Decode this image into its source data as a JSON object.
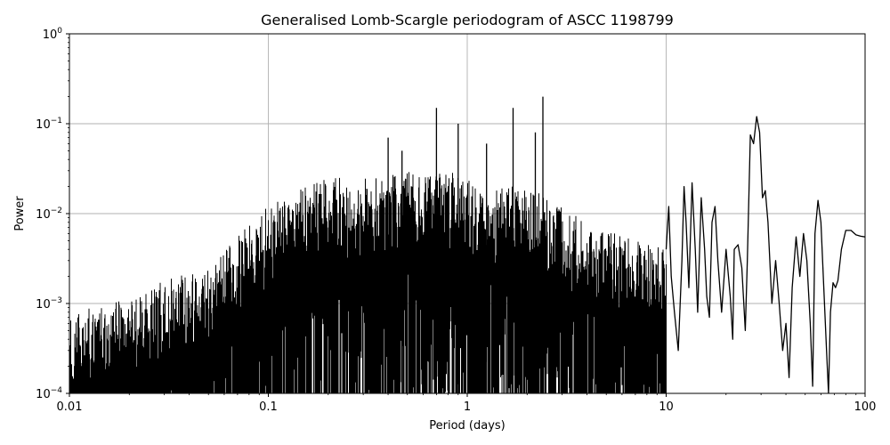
{
  "chart_data": {
    "type": "line",
    "title": "Generalised Lomb-Scargle periodogram of ASCC 1198799",
    "xlabel": "Period (days)",
    "ylabel": "Power",
    "x_scale": "log",
    "y_scale": "log",
    "xlim": [
      0.01,
      100
    ],
    "ylim": [
      0.0001,
      1
    ],
    "grid": true,
    "line_color": "#000000",
    "x_ticks": [
      {
        "value": 0.01,
        "label": "0.01"
      },
      {
        "value": 0.1,
        "label": "0.1"
      },
      {
        "value": 1,
        "label": "1"
      },
      {
        "value": 10,
        "label": "10"
      },
      {
        "value": 100,
        "label": "100"
      }
    ],
    "y_ticks": [
      {
        "value": 0.0001,
        "exp": "−4"
      },
      {
        "value": 0.001,
        "exp": "−3"
      },
      {
        "value": 0.01,
        "exp": "−2"
      },
      {
        "value": 0.1,
        "exp": "−1"
      },
      {
        "value": 1,
        "exp": "0"
      }
    ],
    "y_tick_base": "10",
    "envelope": [
      [
        0.01,
        0.0008
      ],
      [
        0.02,
        0.0012
      ],
      [
        0.03,
        0.0018
      ],
      [
        0.05,
        0.0025
      ],
      [
        0.07,
        0.006
      ],
      [
        0.1,
        0.012
      ],
      [
        0.15,
        0.02
      ],
      [
        0.2,
        0.025
      ],
      [
        0.3,
        0.025
      ],
      [
        0.5,
        0.03
      ],
      [
        0.8,
        0.03
      ],
      [
        1.2,
        0.02
      ],
      [
        2,
        0.02
      ],
      [
        3,
        0.012
      ],
      [
        4,
        0.008
      ],
      [
        6,
        0.006
      ],
      [
        8,
        0.005
      ],
      [
        10,
        0.004
      ]
    ],
    "peaks": [
      {
        "x": 0.4,
        "y": 0.07
      },
      {
        "x": 0.47,
        "y": 0.05
      },
      {
        "x": 0.7,
        "y": 0.15
      },
      {
        "x": 0.9,
        "y": 0.1
      },
      {
        "x": 1.7,
        "y": 0.15
      },
      {
        "x": 2.4,
        "y": 0.2
      },
      {
        "x": 2.2,
        "y": 0.08
      },
      {
        "x": 1.25,
        "y": 0.06
      }
    ],
    "series": [
      {
        "values": [
          [
            10,
            0.004
          ],
          [
            10.3,
            0.012
          ],
          [
            10.6,
            0.002
          ],
          [
            11,
            0.0008
          ],
          [
            11.5,
            0.0003
          ],
          [
            12,
            0.003
          ],
          [
            12.3,
            0.02
          ],
          [
            12.6,
            0.008
          ],
          [
            13,
            0.0015
          ],
          [
            13.5,
            0.022
          ],
          [
            14,
            0.004
          ],
          [
            14.4,
            0.0008
          ],
          [
            15,
            0.015
          ],
          [
            15.6,
            0.004
          ],
          [
            16,
            0.0012
          ],
          [
            16.5,
            0.0007
          ],
          [
            17,
            0.008
          ],
          [
            17.6,
            0.012
          ],
          [
            18.2,
            0.003
          ],
          [
            19,
            0.0008
          ],
          [
            20,
            0.004
          ],
          [
            21,
            0.0012
          ],
          [
            21.6,
            0.0004
          ],
          [
            22,
            0.004
          ],
          [
            23,
            0.0045
          ],
          [
            24,
            0.0025
          ],
          [
            25,
            0.0005
          ],
          [
            25.6,
            0.003
          ],
          [
            26.5,
            0.075
          ],
          [
            27.5,
            0.06
          ],
          [
            28.5,
            0.12
          ],
          [
            29.5,
            0.08
          ],
          [
            30.5,
            0.015
          ],
          [
            31.5,
            0.018
          ],
          [
            32.5,
            0.008
          ],
          [
            34,
            0.001
          ],
          [
            35.5,
            0.003
          ],
          [
            37,
            0.001
          ],
          [
            38.5,
            0.0003
          ],
          [
            40,
            0.0006
          ],
          [
            41.5,
            0.00015
          ],
          [
            43,
            0.0015
          ],
          [
            45,
            0.0055
          ],
          [
            47,
            0.002
          ],
          [
            49,
            0.006
          ],
          [
            51,
            0.003
          ],
          [
            53,
            0.0006
          ],
          [
            54.5,
            0.00012
          ],
          [
            56,
            0.006
          ],
          [
            58,
            0.014
          ],
          [
            60,
            0.008
          ],
          [
            62,
            0.0015
          ],
          [
            64,
            0.0003
          ],
          [
            65.5,
            0.0001
          ],
          [
            67,
            0.0008
          ],
          [
            69,
            0.0017
          ],
          [
            71,
            0.0015
          ],
          [
            73,
            0.0018
          ],
          [
            76,
            0.004
          ],
          [
            80,
            0.0065
          ],
          [
            85,
            0.0065
          ],
          [
            90,
            0.0058
          ],
          [
            95,
            0.0056
          ],
          [
            100,
            0.0055
          ]
        ]
      }
    ]
  }
}
